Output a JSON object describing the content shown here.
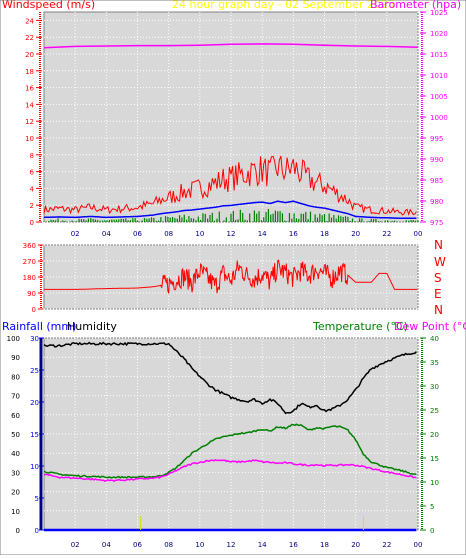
{
  "header": {
    "windspeed_label": "Windspeed (m/s)",
    "graph_title": "24 hour graph day - 02 September 2025",
    "barometer_label": "Barometer (hpa)"
  },
  "direction_labels": [
    "N",
    "W",
    "S",
    "E",
    "N"
  ],
  "bottom_header": {
    "rainfall_label": "Rainfall (mm)",
    "humidity_label": "Humidity",
    "temperature_label": "Temperature (°C)",
    "dewpoint_label": "Dew Point (°C)"
  },
  "colors": {
    "windspeed": "#ff0000",
    "barometer": "#ff00ff",
    "direction": "#ff0000",
    "rainfall": "#0000ff",
    "humidity": "#000000",
    "temperature": "#008000",
    "dewpoint": "#ff00ff",
    "title": "#ffff00",
    "plot_bg": "#d8d8d8"
  },
  "chart_data": [
    {
      "type": "line",
      "x_ticks": [
        "02",
        "04",
        "06",
        "08",
        "10",
        "12",
        "14",
        "16",
        "18",
        "20",
        "22",
        "00"
      ],
      "y_left_ticks": [
        "0",
        "2",
        "4",
        "6",
        "8",
        "10",
        "12",
        "14",
        "16",
        "18",
        "20",
        "22",
        "24"
      ],
      "y_right_ticks": [
        "975",
        "980",
        "985",
        "990",
        "995",
        "1000",
        "1005",
        "1010",
        "1015",
        "1020",
        "1025"
      ],
      "ylim_left": [
        0,
        25
      ],
      "ylim_right": [
        975,
        1025
      ],
      "grid": true,
      "series": [
        {
          "name": "Windspeed (m/s)",
          "axis": "left",
          "x": [
            0,
            1,
            2,
            3,
            4,
            5,
            6,
            7,
            7.5,
            8,
            8.5,
            9,
            9.5,
            10,
            10.5,
            11,
            11.5,
            12,
            12.5,
            13,
            13.5,
            14,
            14.5,
            15,
            15.5,
            16,
            16.5,
            17,
            17.5,
            18,
            18.5,
            19,
            19.5,
            20,
            21,
            22,
            23,
            24
          ],
          "values": [
            1.0,
            1.1,
            1.0,
            1.2,
            1.0,
            1.1,
            1.2,
            1.5,
            1.8,
            2.0,
            2.2,
            2.5,
            2.6,
            2.8,
            3.0,
            3.2,
            3.5,
            3.6,
            3.8,
            4.0,
            4.2,
            4.3,
            4.0,
            4.5,
            4.2,
            4.5,
            4.0,
            3.5,
            3.2,
            3.0,
            2.6,
            2.2,
            1.8,
            1.2,
            1.0,
            0.9,
            0.8,
            0.8
          ]
        },
        {
          "name": "Barometer (hpa)",
          "axis": "right",
          "x": [
            0,
            2,
            4,
            6,
            8,
            10,
            12,
            14,
            16,
            18,
            20,
            22,
            24
          ],
          "values": [
            1016.5,
            1016.8,
            1016.9,
            1017.0,
            1017.0,
            1017.1,
            1017.3,
            1017.4,
            1017.3,
            1017.1,
            1016.9,
            1016.8,
            1016.6
          ]
        }
      ]
    },
    {
      "type": "line",
      "x_ticks": [
        "02",
        "04",
        "06",
        "08",
        "10",
        "12",
        "14",
        "16",
        "18",
        "20",
        "22",
        "00"
      ],
      "y_ticks": [
        "0",
        "90",
        "180",
        "270",
        "360"
      ],
      "ylim": [
        0,
        360
      ],
      "grid": true,
      "series": [
        {
          "name": "Wind direction",
          "x": [
            0,
            2,
            4,
            6,
            7,
            8,
            8.5,
            9,
            9.5,
            10,
            10.5,
            11,
            11.5,
            12,
            12.5,
            13,
            13.5,
            14,
            14.5,
            15,
            15.5,
            16,
            16.5,
            17,
            17.5,
            18,
            18.5,
            19,
            19.5,
            20,
            20.5,
            21,
            21.5,
            22,
            22.5,
            23,
            24
          ],
          "values": [
            110,
            110,
            115,
            118,
            125,
            140,
            165,
            185,
            150,
            210,
            175,
            130,
            200,
            160,
            235,
            190,
            170,
            200,
            150,
            230,
            205,
            175,
            215,
            190,
            225,
            200,
            175,
            215,
            190,
            150,
            150,
            150,
            200,
            200,
            110,
            110,
            110
          ]
        }
      ]
    },
    {
      "type": "line",
      "x_ticks": [
        "02",
        "04",
        "06",
        "08",
        "10",
        "12",
        "14",
        "16",
        "18",
        "20",
        "22",
        "00"
      ],
      "y_left_pct_ticks": [
        "0",
        "10",
        "20",
        "30",
        "40",
        "50",
        "60",
        "70",
        "80",
        "90",
        "100"
      ],
      "y_rain_ticks": [
        "0",
        "5",
        "10",
        "15",
        "20",
        "25",
        "30"
      ],
      "y_right_ticks": [
        "0",
        "5",
        "10",
        "15",
        "20",
        "25",
        "30",
        "35",
        "40"
      ],
      "ylim_humidity": [
        0,
        100
      ],
      "ylim_rain": [
        0,
        30
      ],
      "ylim_temp": [
        0,
        40
      ],
      "grid": true,
      "series": [
        {
          "name": "Humidity",
          "axis": "humidity",
          "x": [
            0,
            1,
            2,
            3,
            4,
            5,
            6,
            7,
            7.5,
            8,
            8.5,
            9,
            9.5,
            10,
            10.5,
            11,
            11.5,
            12,
            12.5,
            13,
            13.5,
            14,
            14.5,
            15,
            15.5,
            16,
            16.5,
            17,
            17.5,
            18,
            18.5,
            19,
            19.5,
            20,
            20.5,
            21,
            22,
            23,
            24
          ],
          "values": [
            96,
            96,
            97,
            97,
            97,
            97,
            97,
            97,
            97,
            97,
            93,
            89,
            84,
            80,
            76,
            73,
            71,
            69,
            68,
            67,
            68,
            66,
            68,
            66,
            61,
            62,
            66,
            64,
            65,
            62,
            63,
            65,
            68,
            73,
            79,
            84,
            88,
            91,
            93
          ]
        },
        {
          "name": "Temperature (°C)",
          "axis": "temp",
          "x": [
            0,
            1,
            2,
            3,
            4,
            5,
            6,
            7,
            7.5,
            8,
            8.5,
            9,
            9.5,
            10,
            10.5,
            11,
            11.5,
            12,
            12.5,
            13,
            13.5,
            14,
            14.5,
            15,
            15.5,
            16,
            16.5,
            17,
            17.5,
            18,
            18.5,
            19,
            19.5,
            20,
            20.5,
            21,
            22,
            23,
            24
          ],
          "values": [
            12.2,
            11.6,
            11.3,
            11.2,
            11.0,
            11.0,
            11.0,
            11.1,
            11.3,
            12.0,
            13.0,
            14.5,
            16.0,
            17.0,
            18.0,
            18.9,
            19.4,
            19.7,
            20.1,
            20.2,
            20.6,
            21.0,
            20.6,
            21.5,
            21.2,
            22.0,
            21.8,
            20.8,
            21.3,
            21.1,
            21.6,
            21.5,
            20.8,
            18.8,
            15.8,
            14.2,
            13.0,
            12.3,
            11.4
          ]
        },
        {
          "name": "Dew Point (°C)",
          "axis": "temp",
          "x": [
            0,
            1,
            2,
            3,
            4,
            5,
            6,
            7,
            7.5,
            8,
            8.5,
            9,
            9.5,
            10,
            10.5,
            11,
            11.5,
            12,
            12.5,
            13,
            13.5,
            14,
            14.5,
            15,
            15.5,
            16,
            16.5,
            17,
            17.5,
            18,
            18.5,
            19,
            19.5,
            20,
            20.5,
            21,
            22,
            23,
            24
          ],
          "values": [
            11.6,
            11.0,
            10.8,
            10.6,
            10.3,
            10.4,
            10.6,
            10.8,
            11.0,
            11.6,
            12.4,
            13.2,
            13.8,
            14.1,
            14.4,
            14.6,
            14.5,
            14.2,
            14.2,
            14.3,
            14.5,
            14.2,
            14.1,
            13.9,
            14.0,
            13.8,
            13.6,
            13.5,
            13.6,
            13.4,
            13.5,
            13.5,
            13.6,
            13.5,
            13.2,
            12.8,
            12.1,
            11.5,
            10.8
          ]
        },
        {
          "name": "Rainfall (mm)",
          "axis": "rain",
          "x": [
            0,
            24
          ],
          "values": [
            0,
            0
          ]
        }
      ]
    }
  ]
}
